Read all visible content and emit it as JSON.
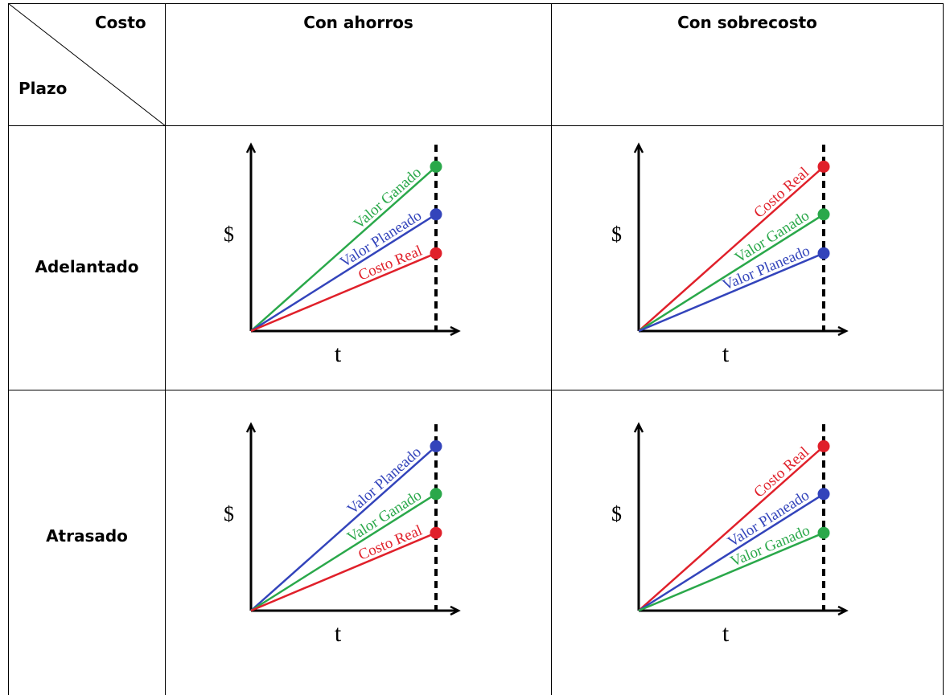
{
  "table": {
    "corner": {
      "top_label": "Costo",
      "bottom_label": "Plazo"
    },
    "columns": [
      "Con ahorros",
      "Con sobrecosto"
    ],
    "rows": [
      "Adelantado",
      "Atrasado"
    ]
  },
  "colors": {
    "valor_ganado": "#2aa84a",
    "valor_planeado": "#3344bb",
    "costo_real": "#e0202a",
    "axis": "#000000"
  },
  "charts": [
    {
      "y_axis_label": "$",
      "x_axis_label": "t",
      "lines": [
        {
          "label": "Valor Ganado",
          "color_key": "valor_ganado",
          "level": 0.93
        },
        {
          "label": "Valor Planeado",
          "color_key": "valor_planeado",
          "level": 0.66
        },
        {
          "label": "Costo Real",
          "color_key": "costo_real",
          "level": 0.44
        }
      ]
    },
    {
      "y_axis_label": "$",
      "x_axis_label": "t",
      "lines": [
        {
          "label": "Costo Real",
          "color_key": "costo_real",
          "level": 0.93
        },
        {
          "label": "Valor Ganado",
          "color_key": "valor_ganado",
          "level": 0.66
        },
        {
          "label": "Valor Planeado",
          "color_key": "valor_planeado",
          "level": 0.44
        }
      ]
    },
    {
      "y_axis_label": "$",
      "x_axis_label": "t",
      "lines": [
        {
          "label": "Valor Planeado",
          "color_key": "valor_planeado",
          "level": 0.93
        },
        {
          "label": "Valor Ganado",
          "color_key": "valor_ganado",
          "level": 0.66
        },
        {
          "label": "Costo Real",
          "color_key": "costo_real",
          "level": 0.44
        }
      ]
    },
    {
      "y_axis_label": "$",
      "x_axis_label": "t",
      "lines": [
        {
          "label": "Costo Real",
          "color_key": "costo_real",
          "level": 0.93
        },
        {
          "label": "Valor Planeado",
          "color_key": "valor_planeado",
          "level": 0.66
        },
        {
          "label": "Valor Ganado",
          "color_key": "valor_ganado",
          "level": 0.44
        }
      ]
    }
  ]
}
